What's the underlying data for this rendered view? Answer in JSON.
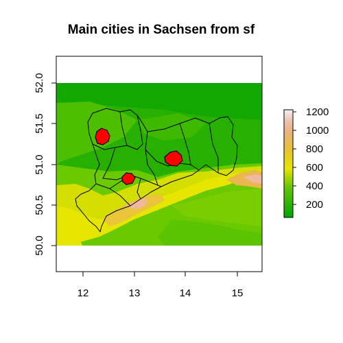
{
  "title": "Main cities in Sachsen from sf",
  "x_axis": {
    "ticks": [
      "12",
      "13",
      "14",
      "15"
    ]
  },
  "y_axis": {
    "ticks": [
      "50.0",
      "50.5",
      "51.0",
      "51.5",
      "52.0"
    ]
  },
  "legend": {
    "ticks": [
      "200",
      "400",
      "600",
      "800",
      "1000",
      "1200"
    ],
    "range": [
      50,
      1250
    ],
    "placement": "right"
  },
  "colors": {
    "low_green": "#00A600",
    "mid_green": "#3EBB00",
    "yellow": "#E6E600",
    "tan": "#EAB64E",
    "pink": "#EEB99F",
    "white": "#F2F2F2",
    "city": "#FF0000",
    "border": "#000000"
  },
  "cities": [
    {
      "lon": 12.37,
      "lat": 51.34
    },
    {
      "lon": 12.92,
      "lat": 50.83
    },
    {
      "lon": 13.74,
      "lat": 51.05
    }
  ]
}
